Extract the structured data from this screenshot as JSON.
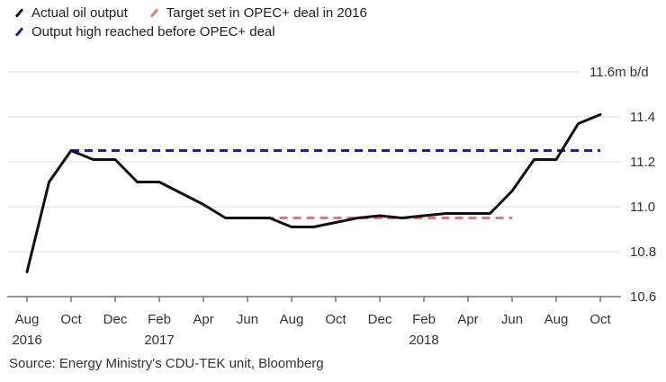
{
  "chart_data": {
    "type": "line",
    "title": "",
    "xlabel": "",
    "ylabel": "",
    "y_unit_label": "11.6m b/d",
    "ylim": [
      10.6,
      11.6
    ],
    "y_ticks": [
      10.6,
      10.8,
      11.0,
      11.2,
      11.4,
      11.6
    ],
    "y_tick_labels": [
      "10.6",
      "10.8",
      "11.0",
      "11.2",
      "11.4",
      "11.6m b/d"
    ],
    "grid": true,
    "legend_position": "top-left",
    "x": [
      "Aug 2016",
      "Sep 2016",
      "Oct 2016",
      "Nov 2016",
      "Dec 2016",
      "Jan 2017",
      "Feb 2017",
      "Mar 2017",
      "Apr 2017",
      "May 2017",
      "Jun 2017",
      "Jul 2017",
      "Aug 2017",
      "Sep 2017",
      "Oct 2017",
      "Nov 2017",
      "Dec 2017",
      "Jan 2018",
      "Feb 2018",
      "Mar 2018",
      "Apr 2018",
      "May 2018",
      "Jun 2018",
      "Jul 2018",
      "Aug 2018",
      "Sep 2018",
      "Oct 2018"
    ],
    "x_ticks": [
      {
        "index": 0,
        "label": "Aug",
        "sub": "2016"
      },
      {
        "index": 2,
        "label": "Oct",
        "sub": ""
      },
      {
        "index": 4,
        "label": "Dec",
        "sub": ""
      },
      {
        "index": 6,
        "label": "Feb",
        "sub": "2017"
      },
      {
        "index": 8,
        "label": "Apr",
        "sub": ""
      },
      {
        "index": 10,
        "label": "Jun",
        "sub": ""
      },
      {
        "index": 12,
        "label": "Aug",
        "sub": ""
      },
      {
        "index": 14,
        "label": "Oct",
        "sub": ""
      },
      {
        "index": 16,
        "label": "Dec",
        "sub": ""
      },
      {
        "index": 18,
        "label": "Feb",
        "sub": "2018"
      },
      {
        "index": 20,
        "label": "Apr",
        "sub": ""
      },
      {
        "index": 22,
        "label": "Jun",
        "sub": ""
      },
      {
        "index": 24,
        "label": "Aug",
        "sub": ""
      },
      {
        "index": 26,
        "label": "Oct",
        "sub": ""
      }
    ],
    "series": [
      {
        "name": "Actual oil output",
        "color": "#111111",
        "style": "solid",
        "values": [
          10.71,
          11.11,
          11.25,
          11.21,
          11.21,
          11.11,
          11.11,
          11.06,
          11.01,
          10.95,
          10.95,
          10.95,
          10.91,
          10.91,
          10.93,
          10.95,
          10.96,
          10.95,
          10.96,
          10.97,
          10.97,
          10.97,
          11.07,
          11.21,
          11.21,
          11.37,
          11.41
        ]
      },
      {
        "name": "Target set in OPEC+ deal in 2016",
        "color": "#e8777d",
        "style": "dashed",
        "from_index": 9,
        "to_index": 22,
        "value": 10.95
      },
      {
        "name": "Output high reached before OPEC+ deal",
        "color": "#2b1aa8",
        "style": "dashed",
        "from_index": 2,
        "to_index": 26,
        "value": 11.25
      }
    ],
    "source": "Source: Energy Ministry's CDU-TEK unit, Bloomberg"
  }
}
